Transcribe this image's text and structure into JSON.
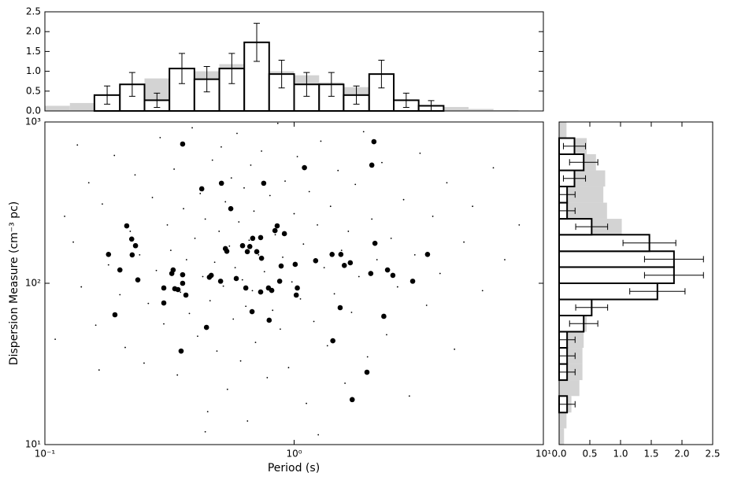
{
  "chart_data": [
    {
      "type": "scatter",
      "xlabel": "Period (s)",
      "ylabel": "Dispersion Measure (cm⁻³ pc)",
      "xlog": true,
      "ylog": true,
      "xlim": [
        0.1,
        10
      ],
      "ylim": [
        10,
        1000
      ],
      "xticks": [
        {
          "value": 0.1,
          "label": "10⁻¹"
        },
        {
          "value": 1,
          "label": "10⁰"
        },
        {
          "value": 10,
          "label": "10¹"
        }
      ],
      "yticks": [
        {
          "value": 10,
          "label": "10¹"
        },
        {
          "value": 100,
          "label": "10²"
        },
        {
          "value": 1000,
          "label": "10³"
        }
      ],
      "series": [
        {
          "color": "#000000",
          "x": [
            0.12,
            0.13,
            0.14,
            0.15,
            0.16,
            0.17,
            0.18,
            0.19,
            0.2,
            0.21,
            0.22,
            0.23,
            0.24,
            0.25,
            0.26,
            0.27,
            0.28,
            0.29,
            0.3,
            0.31,
            0.32,
            0.33,
            0.34,
            0.35,
            0.36,
            0.37,
            0.38,
            0.39,
            0.4,
            0.41,
            0.42,
            0.43,
            0.44,
            0.45,
            0.46,
            0.47,
            0.48,
            0.49,
            0.5,
            0.51,
            0.52,
            0.53,
            0.54,
            0.55,
            0.56,
            0.57,
            0.58,
            0.59,
            0.6,
            0.61,
            0.62,
            0.63,
            0.64,
            0.65,
            0.66,
            0.67,
            0.68,
            0.69,
            0.7,
            0.72,
            0.74,
            0.76,
            0.78,
            0.8,
            0.82,
            0.84,
            0.86,
            0.88,
            0.9,
            0.92,
            0.95,
            0.98,
            1.0,
            1.03,
            1.06,
            1.09,
            1.12,
            1.15,
            1.2,
            1.24,
            1.28,
            1.32,
            1.36,
            1.4,
            1.45,
            1.5,
            1.55,
            1.6,
            1.65,
            1.7,
            1.76,
            1.82,
            1.9,
            1.97,
            2.05,
            2.15,
            2.25,
            2.35,
            2.45,
            2.6,
            2.75,
            2.9,
            3.05,
            3.2,
            3.4,
            3.6,
            3.85,
            4.1,
            4.4,
            4.8,
            5.2,
            5.7,
            6.3,
            7.0,
            0.11,
            0.135,
            0.165,
            8.0,
            0.44,
            1.25
          ],
          "values": [
            260,
            180,
            95,
            420,
            55,
            310,
            130,
            620,
            85,
            40,
            210,
            470,
            150,
            32,
            75,
            340,
            120,
            800,
            56,
            230,
            160,
            510,
            27,
            88,
            290,
            140,
            65,
            920,
            190,
            47,
            360,
            110,
            250,
            16,
            78,
            580,
            135,
            38,
            210,
            700,
            96,
            320,
            22,
            170,
            450,
            60,
            125,
            850,
            240,
            33,
            105,
            390,
            72,
            14,
            185,
            540,
            90,
            280,
            43,
            150,
            660,
            118,
            26,
            350,
            68,
            200,
            980,
            52,
            145,
            430,
            30,
            102,
            270,
            610,
            80,
            175,
            18,
            370,
            58,
            230,
            760,
            125,
            41,
            300,
            86,
            500,
            160,
            24,
            210,
            66,
            410,
            110,
            870,
            35,
            250,
            140,
            560,
            48,
            190,
            95,
            330,
            20,
            150,
            640,
            73,
            260,
            115,
            420,
            39,
            180,
            300,
            90,
            520,
            140,
            45,
            720,
            29,
            230,
            12,
            11.5
          ]
        },
        {
          "color": "#000000",
          "x": [
            0.357,
            2.09,
            1.1,
            2.05,
            0.426,
            0.511,
            0.755,
            0.557,
            0.213,
            0.855,
            0.838,
            0.914,
            0.223,
            0.231,
            0.53,
            2.11,
            0.682,
            0.734,
            0.621,
            0.664,
            0.708,
            0.649,
            0.18,
            0.224,
            0.537,
            0.74,
            1.42,
            1.54,
            3.43,
            1.22,
            1.68,
            1.59,
            1.01,
            0.887,
            0.2,
            0.327,
            0.323,
            0.357,
            2.03,
            2.37,
            2.49,
            0.457,
            0.465,
            0.586,
            0.507,
            0.875,
            0.236,
            0.357,
            2.99,
            0.3,
            0.332,
            0.342,
            0.64,
            0.789,
            0.813,
            1.03,
            0.734,
            0.368,
            1.02,
            0.3,
            1.53,
            0.678,
            0.191,
            2.29,
            0.794,
            0.445,
            1.43,
            0.352,
            1.96,
            1.71
          ],
          "values": [
            730,
            755,
            521,
            540,
            385,
            417,
            417,
            290,
            227,
            227,
            212,
            203,
            188,
            171,
            164,
            177,
            190,
            192,
            171,
            169,
            157,
            157,
            151,
            150,
            158,
            143,
            151,
            151,
            151,
            138,
            134,
            129,
            131,
            128,
            121,
            121,
            115,
            113,
            115,
            121,
            112,
            109,
            112,
            107,
            103,
            103,
            105,
            100,
            103,
            93.5,
            92.5,
            91.4,
            93.5,
            93.5,
            90.3,
            93.5,
            88.3,
            84.5,
            84.5,
            75.5,
            70.6,
            66.7,
            63.8,
            62.4,
            59.0,
            53.3,
            44.0,
            38.0,
            28.1,
            19.0
          ]
        }
      ]
    },
    {
      "type": "histogram",
      "xlog": true,
      "xlim": [
        0.1,
        10
      ],
      "ylim": [
        0,
        2.5
      ],
      "yticks": [
        {
          "value": 0,
          "label": "0.0"
        },
        0.5,
        {
          "value": 1,
          "label": "1.0"
        },
        1.5,
        {
          "value": 2,
          "label": "2.0"
        },
        2.5
      ],
      "bins": [
        0.1,
        0.126,
        0.158,
        0.2,
        0.251,
        0.316,
        0.398,
        0.501,
        0.631,
        0.794,
        1,
        1.26,
        1.58,
        2,
        2.51,
        3.16,
        3.98,
        5.01,
        6.31,
        7.94,
        10
      ],
      "series": [
        {
          "color": "#d3d3d3",
          "values": [
            0.13,
            0.2,
            0.3,
            0.45,
            0.82,
            0.95,
            1.0,
            1.18,
            1.05,
            1.0,
            0.9,
            0.72,
            0.6,
            0.35,
            0.2,
            0.12,
            0.1,
            0.05,
            0.02,
            0
          ]
        },
        {
          "color": "#ffffff",
          "edgecolor": "#000000",
          "values": [
            null,
            null,
            0.4,
            0.67,
            0.27,
            1.07,
            0.8,
            1.07,
            1.73,
            0.93,
            0.67,
            0.67,
            0.4,
            0.93,
            0.27,
            0.13,
            null,
            null,
            null,
            null
          ],
          "errors": [
            null,
            null,
            0.23,
            0.3,
            0.18,
            0.38,
            0.32,
            0.38,
            0.48,
            0.35,
            0.3,
            0.3,
            0.23,
            0.35,
            0.18,
            0.13,
            null,
            null,
            null,
            null
          ]
        }
      ]
    },
    {
      "type": "histogram",
      "orientation": "horizontal",
      "ylog": true,
      "ylim": [
        10,
        1000
      ],
      "xlim": [
        0,
        2.5
      ],
      "xticks": [
        {
          "value": 0,
          "label": "0.0"
        },
        0.5,
        {
          "value": 1,
          "label": "1.0"
        },
        1.5,
        {
          "value": 2,
          "label": "2.0"
        },
        2.5
      ],
      "bins": [
        10,
        12.6,
        15.8,
        20,
        25.1,
        31.6,
        39.8,
        50.1,
        63.1,
        79.4,
        100,
        126,
        158,
        200,
        251,
        316,
        398,
        501,
        631,
        794,
        1000
      ],
      "series": [
        {
          "color": "#d3d3d3",
          "values": [
            0.08,
            0.12,
            0.2,
            0.33,
            0.38,
            0.38,
            0.4,
            0.45,
            0.5,
            0.55,
            0.62,
            0.68,
            0.75,
            1.02,
            0.78,
            0.72,
            0.75,
            0.6,
            0.45,
            0.12
          ]
        },
        {
          "color": "#ffffff",
          "edgecolor": "#000000",
          "values": [
            0,
            0,
            0.13,
            0,
            0.13,
            0.13,
            0.13,
            0.4,
            0.53,
            1.6,
            1.87,
            1.87,
            1.47,
            0.53,
            0.13,
            0.13,
            0.25,
            0.4,
            0.25,
            0
          ],
          "errors": [
            null,
            null,
            0.13,
            null,
            0.13,
            0.13,
            0.13,
            0.23,
            0.26,
            0.45,
            0.48,
            0.48,
            0.43,
            0.26,
            0.13,
            0.13,
            0.18,
            0.23,
            0.18,
            null
          ]
        }
      ]
    }
  ]
}
